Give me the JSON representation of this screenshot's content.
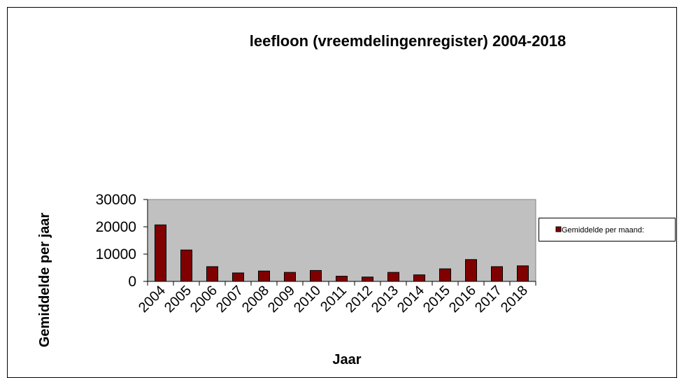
{
  "chart_data": {
    "type": "bar",
    "title": "leefloon (vreemdelingenregister) 2004-2018",
    "x_label": "Jaar",
    "y_label": "Gemiddelde per jaar",
    "categories": [
      "2004",
      "2005",
      "2006",
      "2007",
      "2008",
      "2009",
      "2010",
      "2011",
      "2012",
      "2013",
      "2014",
      "2015",
      "2016",
      "2017",
      "2018"
    ],
    "series": [
      {
        "name": "Gemiddelde per maand:",
        "color": "#800000",
        "values": [
          20700,
          11500,
          5400,
          3100,
          3800,
          3300,
          4000,
          1900,
          1600,
          3300,
          2400,
          4600,
          8000,
          5400,
          5700
        ]
      }
    ],
    "ylim": [
      0,
      30000
    ],
    "yticks": [
      0,
      10000,
      20000,
      30000
    ],
    "grid": false,
    "legend": "right"
  }
}
